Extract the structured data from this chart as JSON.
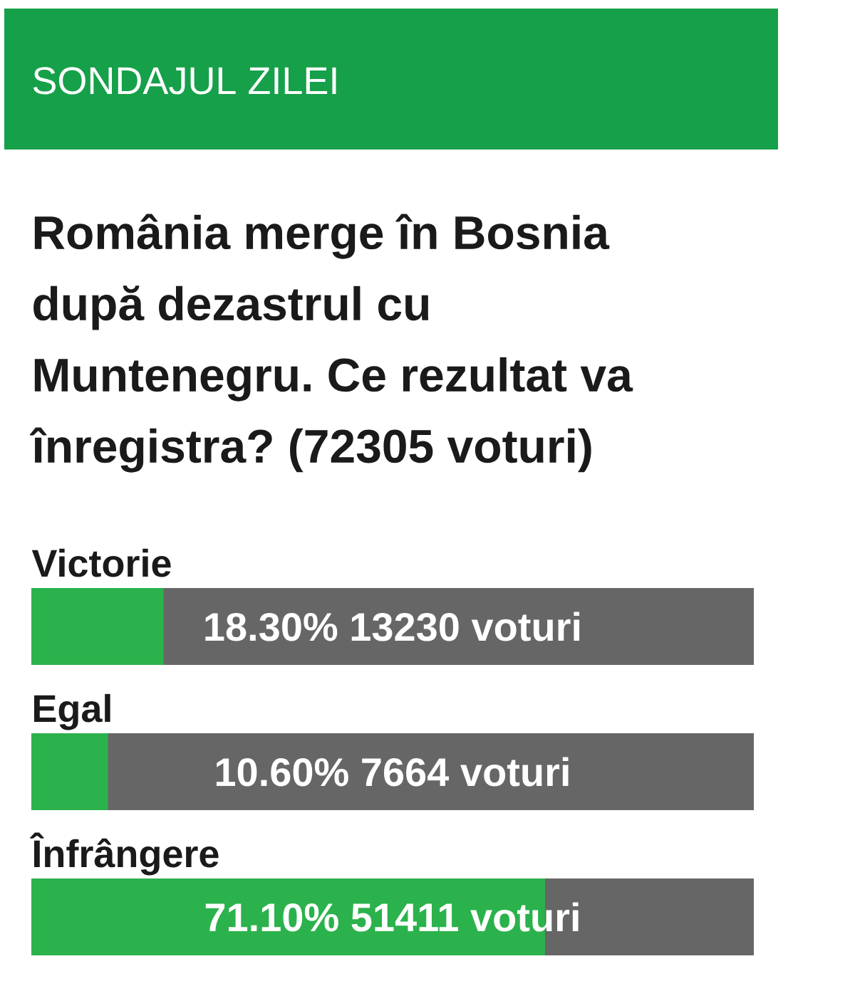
{
  "chart_data": {
    "type": "bar",
    "orientation": "horizontal",
    "title": "SONDAJUL ZILEI",
    "subtitle": "România merge în Bosnia după dezastrul cu Muntenegru. Ce rezultat va înregistra? (72305 voturi)",
    "categories": [
      "Victorie",
      "Egal",
      "Înfrângere"
    ],
    "values": [
      18.3,
      10.6,
      71.1
    ],
    "color": "#2bb24c",
    "value_labels": [
      "18.30% 13230 voturi",
      "10.60% 7664 voturi",
      "71.10% 51411 voturi"
    ],
    "xlim": [
      0,
      100
    ]
  }
}
